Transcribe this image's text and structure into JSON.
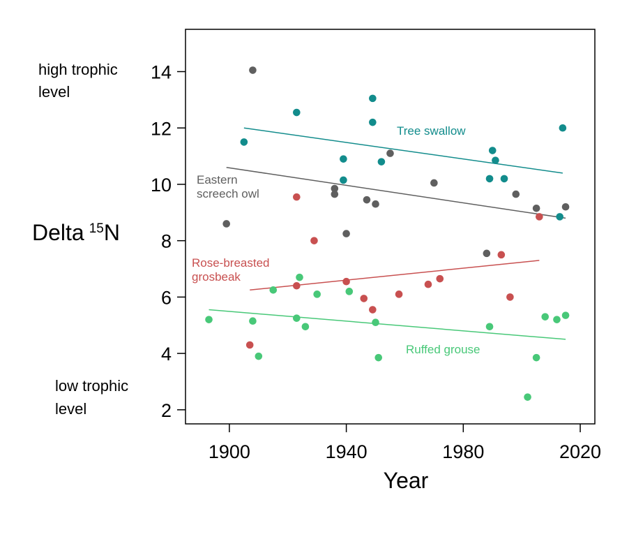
{
  "chart_data": {
    "type": "scatter",
    "title": "",
    "xlabel": "Year",
    "ylabel": "Delta",
    "ylabel_superscript": "15",
    "ylabel_suffix": "N",
    "xlim": [
      1885,
      2025
    ],
    "ylim": [
      1.5,
      15.5
    ],
    "xticks": [
      1900,
      1940,
      1980,
      2020
    ],
    "yticks": [
      2,
      4,
      6,
      8,
      10,
      12,
      14
    ],
    "grid": false,
    "legend": "none",
    "annotations": {
      "high": [
        "high trophic",
        "level"
      ],
      "low": [
        "low trophic",
        "level"
      ]
    },
    "series": [
      {
        "name": "Tree swallow",
        "label_lines": [
          "Tree swallow"
        ],
        "color": "#128c8c",
        "points": [
          [
            1905,
            11.5
          ],
          [
            1923,
            12.55
          ],
          [
            1939,
            10.9
          ],
          [
            1939,
            10.15
          ],
          [
            1949,
            13.05
          ],
          [
            1949,
            12.2
          ],
          [
            1952,
            10.8
          ],
          [
            1989,
            10.2
          ],
          [
            1990,
            11.2
          ],
          [
            1991,
            10.85
          ],
          [
            1994,
            10.2
          ],
          [
            2013,
            8.85
          ],
          [
            2014,
            12.0
          ]
        ],
        "trend": [
          [
            1905,
            12.0
          ],
          [
            2014,
            10.4
          ]
        ]
      },
      {
        "name": "Eastern screech owl",
        "label_lines": [
          "Eastern",
          "screech owl"
        ],
        "color": "#5f5f5f",
        "points": [
          [
            1899,
            8.6
          ],
          [
            1908,
            14.05
          ],
          [
            1936,
            9.85
          ],
          [
            1936,
            9.65
          ],
          [
            1940,
            8.25
          ],
          [
            1947,
            9.45
          ],
          [
            1950,
            9.3
          ],
          [
            1955,
            11.1
          ],
          [
            1970,
            10.05
          ],
          [
            1988,
            7.55
          ],
          [
            1998,
            9.65
          ],
          [
            2005,
            9.15
          ],
          [
            2015,
            9.2
          ]
        ],
        "trend": [
          [
            1899,
            10.6
          ],
          [
            2015,
            8.8
          ]
        ]
      },
      {
        "name": "Rose-breasted grosbeak",
        "label_lines": [
          "Rose-breasted",
          "grosbeak"
        ],
        "color": "#c85050",
        "points": [
          [
            1907,
            4.3
          ],
          [
            1923,
            9.55
          ],
          [
            1923,
            6.4
          ],
          [
            1929,
            8.0
          ],
          [
            1940,
            6.55
          ],
          [
            1946,
            5.95
          ],
          [
            1949,
            5.55
          ],
          [
            1958,
            6.1
          ],
          [
            1968,
            6.45
          ],
          [
            1972,
            6.65
          ],
          [
            1993,
            7.5
          ],
          [
            1996,
            6.0
          ],
          [
            2006,
            8.85
          ]
        ],
        "trend": [
          [
            1907,
            6.25
          ],
          [
            2006,
            7.3
          ]
        ]
      },
      {
        "name": "Ruffed grouse",
        "label_lines": [
          "Ruffed grouse"
        ],
        "color": "#48c878",
        "points": [
          [
            1893,
            5.2
          ],
          [
            1908,
            5.15
          ],
          [
            1910,
            3.9
          ],
          [
            1915,
            6.25
          ],
          [
            1923,
            5.25
          ],
          [
            1924,
            6.7
          ],
          [
            1926,
            4.95
          ],
          [
            1930,
            6.1
          ],
          [
            1941,
            6.2
          ],
          [
            1950,
            5.1
          ],
          [
            1951,
            3.85
          ],
          [
            1989,
            4.95
          ],
          [
            2002,
            2.45
          ],
          [
            2005,
            3.85
          ],
          [
            2008,
            5.3
          ],
          [
            2012,
            5.2
          ],
          [
            2015,
            5.35
          ]
        ],
        "trend": [
          [
            1893,
            5.55
          ],
          [
            2015,
            4.5
          ]
        ]
      }
    ]
  }
}
